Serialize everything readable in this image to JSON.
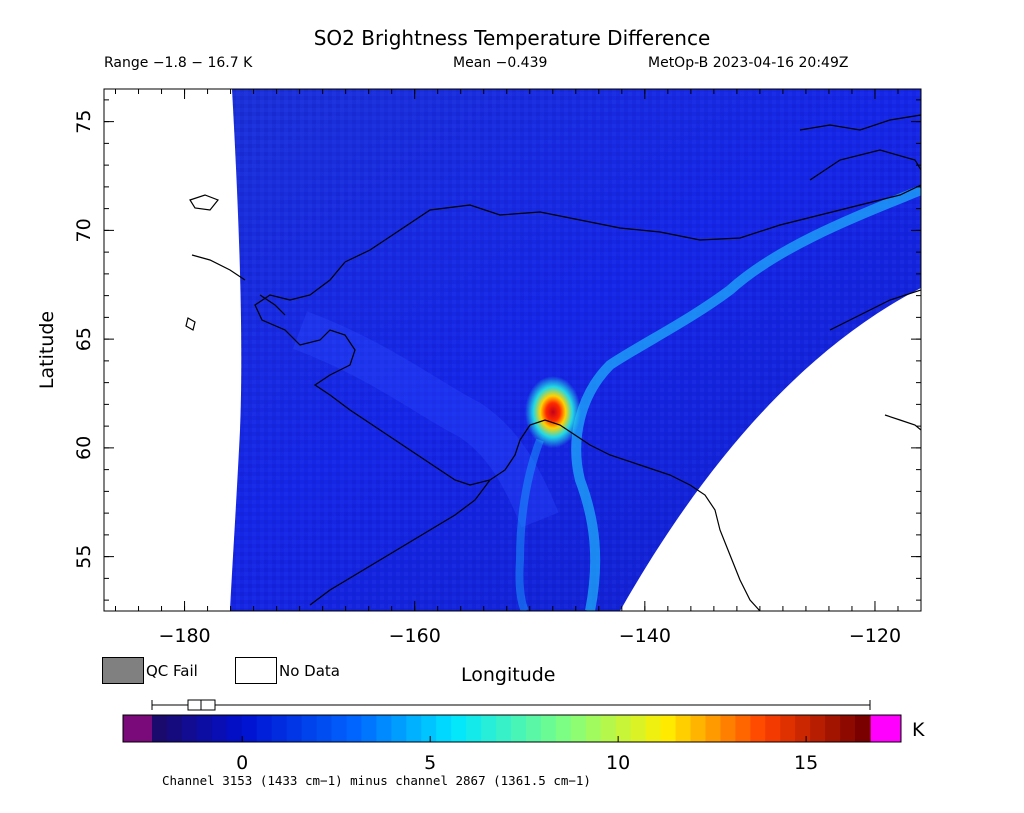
{
  "header": {
    "title": "SO2 Brightness Temperature Difference",
    "range": "Range −1.8 − 16.7 K",
    "mean": "Mean −0.439",
    "satellite_time": "MetOp-B 2023-04-16 20:49Z"
  },
  "axes": {
    "ylabel": "Latitude",
    "xlabel": "Longitude",
    "lat_ticks": [
      "75",
      "70",
      "65",
      "60",
      "55"
    ],
    "lon_ticks": [
      "−180",
      "−160",
      "−140",
      "−120"
    ]
  },
  "legend": {
    "qc_fail": "QC Fail",
    "no_data": "No Data"
  },
  "colorbar": {
    "unit": "K",
    "ticks": [
      "0",
      "5",
      "10",
      "15"
    ],
    "min": -2.4,
    "max": 16.7,
    "footnote": "Channel 3153 (1433 cm−1) minus channel 2867 (1361.5 cm−1)"
  },
  "map_data": {
    "lon_range": [
      -187,
      -116
    ],
    "lat_range": [
      52.5,
      76.5
    ],
    "hotspot": {
      "lon": -148.3,
      "lat": 61.7,
      "max_k": 16.7
    },
    "colors": {
      "background_field": "#1b2de0",
      "qc_fail": "#808080",
      "no_data": "#ffffff",
      "hotspot_core": "#d8001a"
    }
  }
}
